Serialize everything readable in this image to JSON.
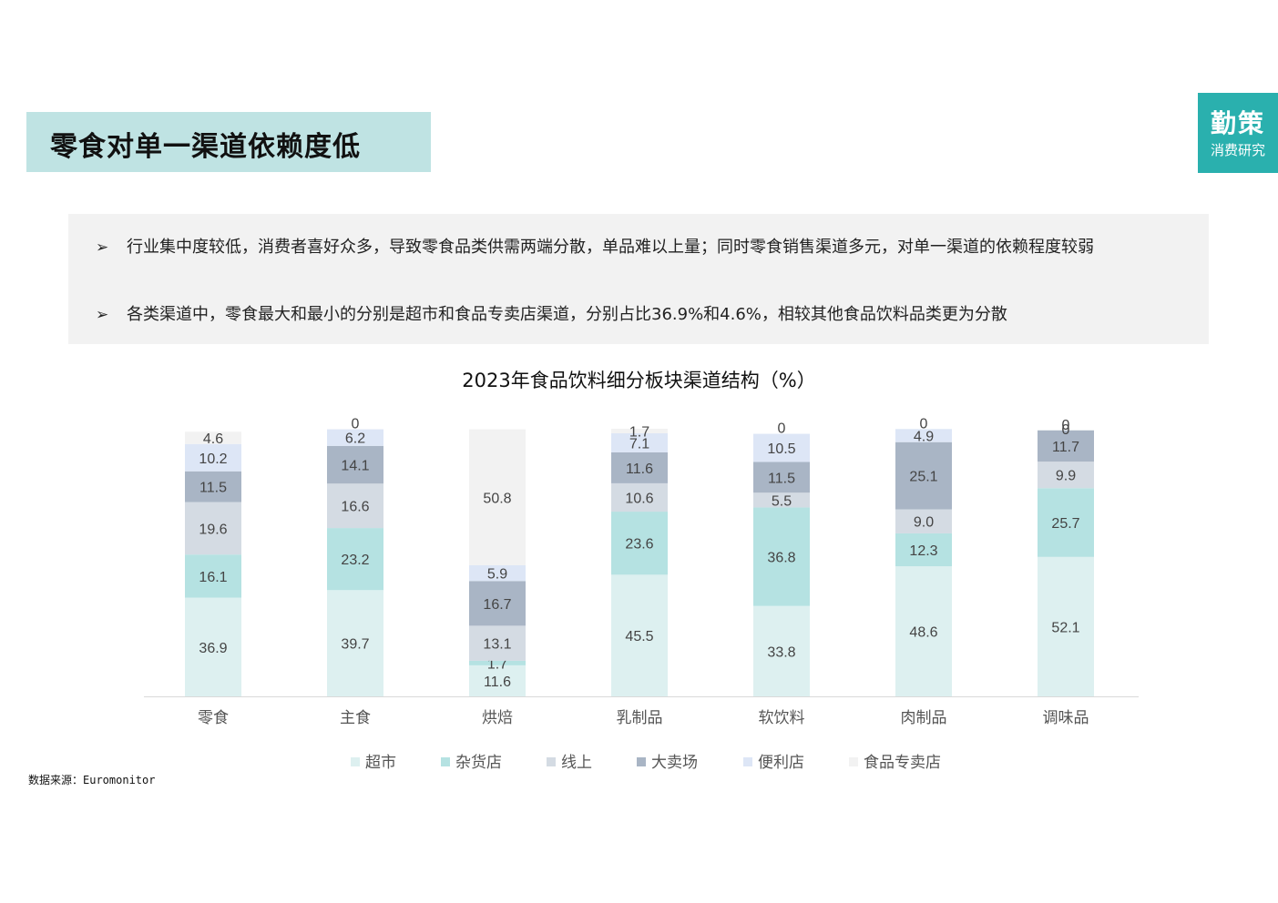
{
  "header": {
    "title": "零食对单一渠道依赖度低"
  },
  "logo": {
    "line1": "勤策",
    "line2": "消费研究"
  },
  "notes": [
    {
      "bullet": "➢",
      "text": "行业集中度较低，消费者喜好众多，导致零食品类供需两端分散，单品难以上量；同时零食销售渠道多元，对单一渠道的依赖程度较弱"
    },
    {
      "bullet": "➢",
      "text": "各类渠道中，零食最大和最小的分别是超市和食品专卖店渠道，分别占比36.9%和4.6%，相较其他食品饮料品类更为分散"
    }
  ],
  "chart_data": {
    "type": "bar",
    "stacked": true,
    "title": "2023年食品饮料细分板块渠道结构（%）",
    "categories": [
      "零食",
      "主食",
      "烘焙",
      "乳制品",
      "软饮料",
      "肉制品",
      "调味品"
    ],
    "series": [
      {
        "name": "超市",
        "color": "#ddf0f0",
        "values": [
          36.9,
          39.7,
          11.6,
          45.5,
          33.8,
          48.6,
          52.1
        ]
      },
      {
        "name": "杂货店",
        "color": "#b5e2e2",
        "values": [
          16.1,
          23.2,
          1.7,
          23.6,
          36.8,
          12.3,
          25.7
        ]
      },
      {
        "name": "线上",
        "color": "#d4dbe3",
        "values": [
          19.6,
          16.6,
          13.1,
          10.6,
          5.5,
          9.0,
          9.9
        ]
      },
      {
        "name": "大卖场",
        "color": "#a9b5c5",
        "values": [
          11.5,
          14.1,
          16.7,
          11.6,
          11.5,
          25.1,
          11.7
        ]
      },
      {
        "name": "便利店",
        "color": "#dde6f6",
        "values": [
          10.2,
          6.2,
          5.9,
          7.1,
          10.5,
          4.9,
          0
        ]
      },
      {
        "name": "食品专卖店",
        "color": "#f2f2f2",
        "values": [
          4.6,
          0,
          50.8,
          1.7,
          0,
          0,
          0
        ]
      }
    ],
    "value_labels": [
      [
        "36.9",
        "39.7",
        "11.6",
        "45.5",
        "33.8",
        "48.6",
        "52.1"
      ],
      [
        "16.1",
        "23.2",
        "1.7",
        "23.6",
        "36.8",
        "12.3",
        "25.7"
      ],
      [
        "19.6",
        "16.6",
        "13.1",
        "10.6",
        "5.5",
        "9.0",
        "9.9"
      ],
      [
        "11.5",
        "14.1",
        "16.7",
        "11.6",
        "11.5",
        "25.1",
        "11.7"
      ],
      [
        "10.2",
        "6.2",
        "5.9",
        "7.1",
        "10.5",
        "4.9",
        "0"
      ],
      [
        "4.6",
        "0",
        "50.8",
        "1.7",
        "0",
        "0",
        "0"
      ]
    ],
    "ylim": [
      0,
      100
    ],
    "grid": false,
    "legend": "bottom"
  },
  "source": "数据来源：Euromonitor"
}
